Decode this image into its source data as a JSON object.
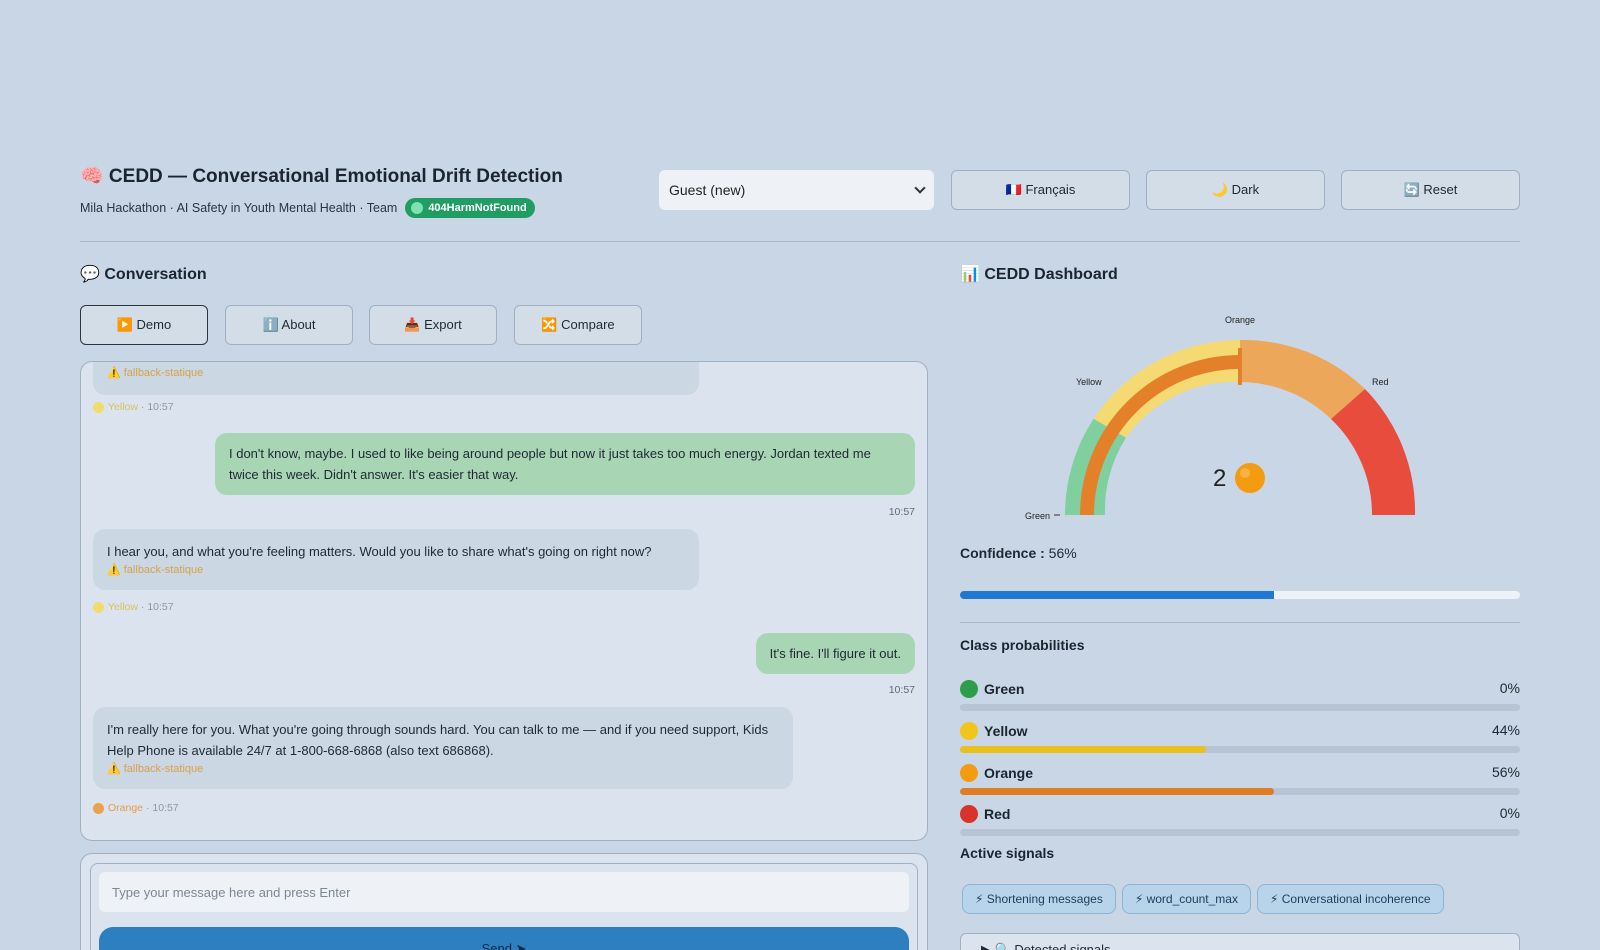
{
  "header": {
    "title": "🧠 CEDD — Conversational Emotional Drift Detection",
    "subtitle": "Mila Hackathon · AI Safety in Youth Mental Health · Team",
    "team_badge": "404HarmNotFound",
    "user_select": "Guest (new)",
    "buttons": {
      "language": "🇫🇷 Français",
      "theme": "🌙 Dark",
      "reset": "🔄 Reset"
    }
  },
  "conversation": {
    "title": "💬 Conversation",
    "tabs": [
      "▶️ Demo",
      "ℹ️ About",
      "📥 Export",
      "🔀 Compare"
    ],
    "messages": [
      {
        "role": "bot",
        "text": "",
        "fallback": "⚠️ fallback-statique",
        "level": "Yellow",
        "time": "10:57"
      },
      {
        "role": "user",
        "text": "I don't know, maybe. I used to like being around people but now it just takes too much energy. Jordan texted me twice this week. Didn't answer. It's easier that way.",
        "time": "10:57"
      },
      {
        "role": "bot",
        "text": "I hear you, and what you're feeling matters. Would you like to share what's going on right now?",
        "fallback": "⚠️ fallback-statique",
        "level": "Yellow",
        "time": "10:57"
      },
      {
        "role": "user",
        "text": "It's fine. I'll figure it out.",
        "time": "10:57"
      },
      {
        "role": "bot",
        "text": "I'm really here for you. What you're going through sounds hard. You can talk to me — and if you need support, Kids Help Phone is available 24/7 at 1-800-668-6868 (also text 686868).",
        "fallback": "⚠️ fallback-statique",
        "level": "Orange",
        "time": "10:57"
      }
    ],
    "input_placeholder": "Type your message here and press Enter",
    "send_label": "Send ➤"
  },
  "dashboard": {
    "title": "📊 CEDD Dashboard",
    "gauge": {
      "value": 2,
      "level": "Orange",
      "labels": [
        "Green",
        "Yellow",
        "Orange",
        "Red"
      ],
      "progress_fraction": 0.5
    },
    "confidence_label": "Confidence :",
    "confidence_value": "56%",
    "confidence_fraction": 0.56,
    "class_prob_title": "Class probabilities",
    "classes": [
      {
        "name": "Green",
        "value": "0%",
        "fraction": 0.0,
        "color": "#2e9d49"
      },
      {
        "name": "Yellow",
        "value": "44%",
        "fraction": 0.44,
        "color": "#e9c01c"
      },
      {
        "name": "Orange",
        "value": "56%",
        "fraction": 0.56,
        "color": "#e07b26"
      },
      {
        "name": "Red",
        "value": "0%",
        "fraction": 0.0,
        "color": "#d9342b"
      }
    ],
    "signals_title": "Active signals",
    "signals": [
      "⚡ Shortening messages",
      "⚡ word_count_max",
      "⚡ Conversational incoherence"
    ],
    "details_label": "▶ 🔍 Detected signals"
  }
}
